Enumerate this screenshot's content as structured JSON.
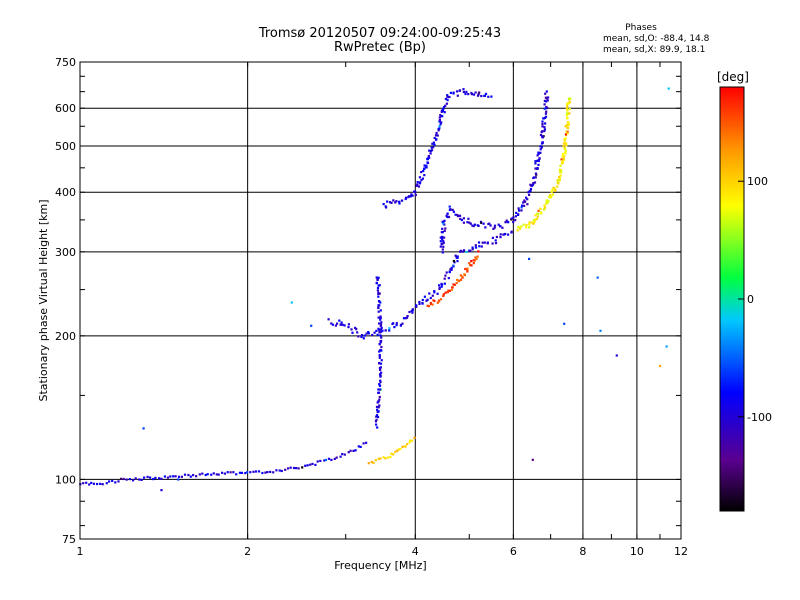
{
  "header": {
    "title_line1": "Tromsø 20120507 09:24:00-09:25:43",
    "title_line2": "RwPretec (Bp)",
    "phases_title": "Phases",
    "phases_o": "mean, sd,O: -88.4, 14.8",
    "phases_x": "mean, sd,X:  89.9, 18.1"
  },
  "colorbar": {
    "unit": "[deg]",
    "range": [
      -180,
      180
    ],
    "ticks": [
      100,
      0,
      -100
    ],
    "tick_labels": [
      "100",
      "0",
      "-100"
    ]
  },
  "colors": {
    "grid": "#000000",
    "background": "#ffffff"
  },
  "chart_data": {
    "type": "scatter",
    "xlabel": "Frequency [MHz]",
    "ylabel": "Stationary phase Virtual Height [km]",
    "xscale": "log",
    "yscale": "log",
    "xlim": [
      1,
      12
    ],
    "ylim": [
      75,
      750
    ],
    "xticks": [
      1,
      2,
      4,
      6,
      8,
      10,
      12
    ],
    "xtick_labels": [
      "1",
      "2",
      "4",
      "6",
      "8",
      "10",
      "12"
    ],
    "yticks": [
      75,
      100,
      200,
      300,
      400,
      500,
      600,
      750
    ],
    "ytick_labels": [
      "75",
      "100",
      "200",
      "300",
      "400",
      "500",
      "600",
      "750"
    ],
    "x_gridlines": [
      2,
      4,
      6,
      8,
      10,
      12
    ],
    "y_gridlines": [
      100,
      200,
      300,
      400,
      500,
      600
    ],
    "grid": true,
    "color_value": "phase_deg",
    "traces": [
      {
        "points": [
          [
            1.0,
            98
          ],
          [
            1.1,
            98
          ],
          [
            1.2,
            100
          ],
          [
            1.4,
            101
          ],
          [
            1.6,
            102
          ],
          [
            1.8,
            103
          ],
          [
            2.0,
            103
          ],
          [
            2.2,
            104
          ],
          [
            2.5,
            106
          ],
          [
            2.8,
            110
          ],
          [
            3.1,
            115
          ],
          [
            3.3,
            120
          ]
        ],
        "phase": -100,
        "step": 0.012,
        "spread": 0.006
      },
      {
        "points": [
          [
            3.3,
            108
          ],
          [
            3.6,
            112
          ],
          [
            3.85,
            118
          ],
          [
            4.0,
            123
          ]
        ],
        "phase": 105,
        "step": 0.01,
        "spread": 0.006
      },
      {
        "points": [
          [
            3.4,
            130
          ],
          [
            3.45,
            155
          ],
          [
            3.47,
            200
          ],
          [
            3.45,
            230
          ],
          [
            3.42,
            270
          ]
        ],
        "phase": -95,
        "step": 0.008,
        "spread": 0.012
      },
      {
        "points": [
          [
            2.8,
            215
          ],
          [
            3.0,
            210
          ],
          [
            3.2,
            200
          ],
          [
            3.5,
            205
          ],
          [
            3.8,
            215
          ],
          [
            4.1,
            235
          ],
          [
            4.4,
            250
          ],
          [
            4.6,
            270
          ],
          [
            4.8,
            300
          ],
          [
            5.0,
            305
          ],
          [
            5.3,
            312
          ],
          [
            5.6,
            318
          ],
          [
            6.0,
            330
          ]
        ],
        "phase": -95,
        "step": 0.008,
        "spread": 0.014
      },
      {
        "points": [
          [
            4.2,
            230
          ],
          [
            4.5,
            242
          ],
          [
            4.8,
            262
          ],
          [
            5.0,
            280
          ],
          [
            5.2,
            300
          ]
        ],
        "phase": 155,
        "step": 0.007,
        "spread": 0.01
      },
      {
        "points": [
          [
            4.45,
            300
          ],
          [
            4.5,
            340
          ],
          [
            4.6,
            370
          ],
          [
            4.9,
            350
          ],
          [
            5.3,
            340
          ],
          [
            5.7,
            340
          ],
          [
            6.0,
            350
          ],
          [
            6.3,
            380
          ],
          [
            6.55,
            430
          ],
          [
            6.75,
            520
          ],
          [
            6.85,
            600
          ],
          [
            6.9,
            650
          ]
        ],
        "phase": -100,
        "step": 0.007,
        "spread": 0.014
      },
      {
        "points": [
          [
            6.1,
            335
          ],
          [
            6.5,
            345
          ],
          [
            6.9,
            380
          ],
          [
            7.2,
            420
          ],
          [
            7.4,
            480
          ],
          [
            7.5,
            560
          ],
          [
            7.55,
            640
          ]
        ],
        "phase": 85,
        "step": 0.006,
        "spread": 0.012
      },
      {
        "points": [
          [
            3.5,
            375
          ],
          [
            3.8,
            385
          ],
          [
            4.0,
            400
          ],
          [
            4.1,
            430
          ],
          [
            4.25,
            480
          ],
          [
            4.4,
            540
          ],
          [
            4.5,
            600
          ],
          [
            4.6,
            640
          ],
          [
            4.9,
            650
          ],
          [
            5.2,
            640
          ],
          [
            5.5,
            640
          ]
        ],
        "phase": -95,
        "step": 0.007,
        "spread": 0.012
      }
    ],
    "scattered_points": [
      [
        1.3,
        128,
        -60
      ],
      [
        1.4,
        95,
        -100
      ],
      [
        1.5,
        100,
        -60
      ],
      [
        2.4,
        235,
        -20
      ],
      [
        2.6,
        210,
        -60
      ],
      [
        8.5,
        265,
        -50
      ],
      [
        8.6,
        205,
        -40
      ],
      [
        9.2,
        182,
        -100
      ],
      [
        11.0,
        173,
        120
      ],
      [
        11.3,
        190,
        -30
      ],
      [
        11.4,
        660,
        -20
      ],
      [
        7.4,
        212,
        -60
      ],
      [
        6.5,
        110,
        -140
      ],
      [
        6.4,
        290,
        -60
      ]
    ]
  }
}
